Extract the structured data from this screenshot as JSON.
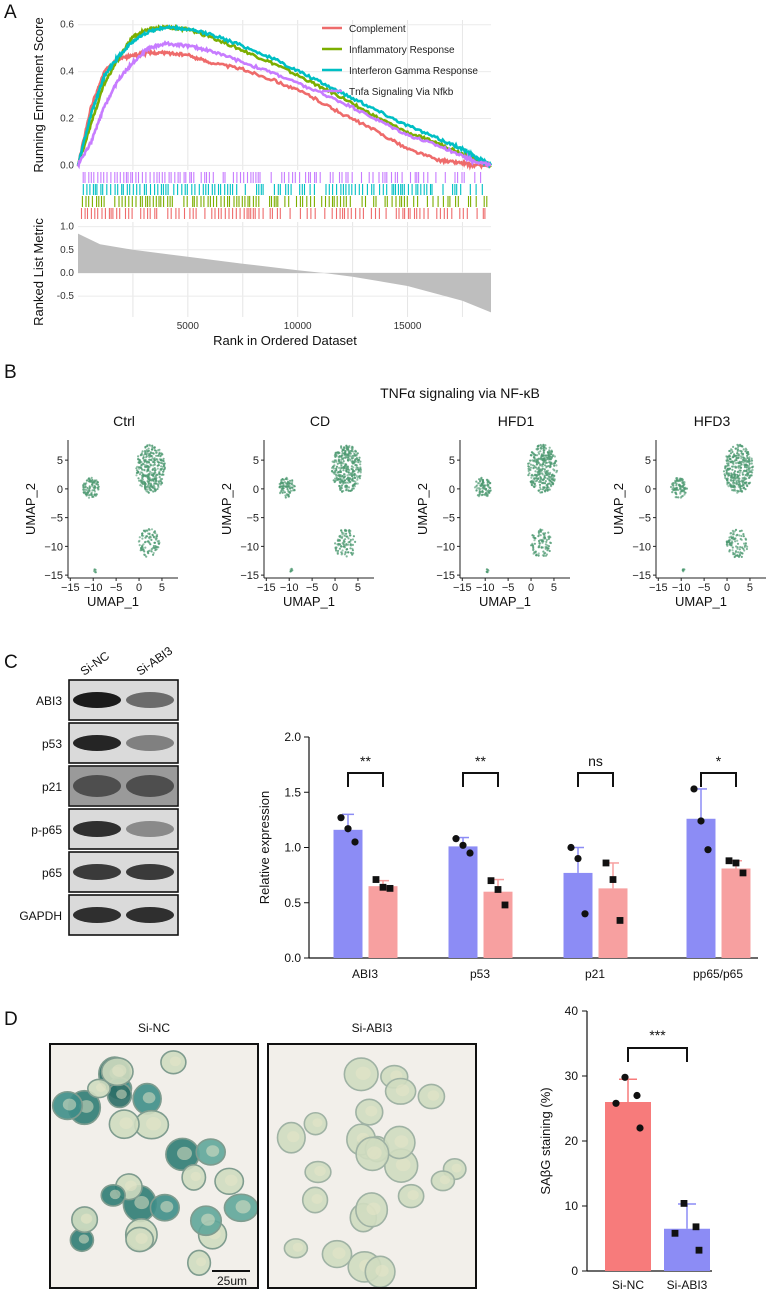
{
  "panel_letters": [
    "A",
    "B",
    "C",
    "D"
  ],
  "panel_a": {
    "ylabel_top": "Running Enrichment Score",
    "ylabel_bottom": "Ranked List Metric",
    "xlabel": "Rank in Ordered Dataset",
    "es_ticks": [
      "0.0",
      "0.2",
      "0.4",
      "0.6"
    ],
    "metric_ticks": [
      "1.0",
      "0.5",
      "0.0",
      "-0.5"
    ],
    "x_ticks": [
      "5000",
      "10000",
      "15000"
    ],
    "legend": [
      {
        "name": "Complement",
        "color": "#EE6B6B"
      },
      {
        "name": "Inflammatory Response",
        "color": "#7CAE00"
      },
      {
        "name": "Interferon Gamma Response",
        "color": "#00BFC4"
      },
      {
        "name": "Tnfa Signaling Via Nfkb",
        "color": "#C77CFF"
      }
    ]
  },
  "panel_b": {
    "title": "TNFα signaling via NF-κB",
    "groups": [
      "Ctrl",
      "CD",
      "HFD1",
      "HFD3"
    ],
    "xlabel": "UMAP_1",
    "ylabel": "UMAP_2",
    "x_ticks": [
      "−15",
      "−10",
      "−5",
      "0",
      "5"
    ],
    "y_ticks": [
      "5",
      "0",
      "−5",
      "−10",
      "−15"
    ],
    "color": "#4E9A72"
  },
  "panel_c": {
    "lanes": [
      "Si-NC",
      "Si-ABI3"
    ],
    "blots": [
      "ABI3",
      "p53",
      "p21",
      "p-p65",
      "p65",
      "GAPDH"
    ]
  },
  "panel_d": {
    "image_labels": [
      "Si-NC",
      "Si-ABI3"
    ],
    "scale_bar": "25um"
  },
  "chart_data": [
    {
      "type": "line",
      "title": "",
      "xlabel": "Rank in Ordered Dataset",
      "ylabel": "Running Enrichment Score",
      "xlim": [
        0,
        18800
      ],
      "ylim": [
        -0.02,
        0.62
      ],
      "series": [
        {
          "name": "Complement",
          "color": "#EE6B6B",
          "x": [
            0,
            600,
            1200,
            1800,
            2500,
            3200,
            4000,
            5000,
            6000,
            7500,
            9000,
            10500,
            12000,
            13500,
            15000,
            16500,
            17500,
            18000,
            18800
          ],
          "values": [
            0.0,
            0.25,
            0.4,
            0.45,
            0.47,
            0.48,
            0.48,
            0.47,
            0.44,
            0.41,
            0.36,
            0.3,
            0.22,
            0.15,
            0.07,
            0.02,
            0.01,
            0.0,
            0.0
          ]
        },
        {
          "name": "Inflammatory Response",
          "color": "#7CAE00",
          "x": [
            0,
            600,
            1200,
            1800,
            2500,
            3200,
            4000,
            5000,
            6000,
            7500,
            9000,
            10500,
            12000,
            13500,
            15000,
            16500,
            17500,
            18000,
            18800
          ],
          "values": [
            0.0,
            0.18,
            0.35,
            0.45,
            0.55,
            0.58,
            0.59,
            0.58,
            0.55,
            0.49,
            0.43,
            0.36,
            0.29,
            0.21,
            0.14,
            0.09,
            0.05,
            0.03,
            0.0
          ]
        },
        {
          "name": "Interferon Gamma Response",
          "color": "#00BFC4",
          "x": [
            0,
            600,
            1200,
            1800,
            2500,
            3200,
            4000,
            5000,
            6000,
            7500,
            9000,
            10500,
            12000,
            13500,
            15000,
            16500,
            17500,
            18000,
            18800
          ],
          "values": [
            0.0,
            0.22,
            0.38,
            0.46,
            0.53,
            0.57,
            0.59,
            0.58,
            0.56,
            0.51,
            0.45,
            0.38,
            0.31,
            0.24,
            0.17,
            0.11,
            0.07,
            0.04,
            0.0
          ]
        },
        {
          "name": "Tnfa Signaling Via Nfkb",
          "color": "#C77CFF",
          "x": [
            0,
            600,
            1200,
            1800,
            2500,
            3200,
            4000,
            5000,
            6000,
            7500,
            9000,
            10500,
            12000,
            13500,
            15000,
            16500,
            17500,
            18000,
            18800
          ],
          "values": [
            0.0,
            0.1,
            0.25,
            0.36,
            0.44,
            0.5,
            0.52,
            0.51,
            0.49,
            0.44,
            0.39,
            0.33,
            0.27,
            0.2,
            0.13,
            0.08,
            0.04,
            0.02,
            0.0
          ]
        }
      ]
    },
    {
      "type": "area",
      "title": "",
      "xlabel": "Rank in Ordered Dataset",
      "ylabel": "Ranked List Metric",
      "xlim": [
        0,
        18800
      ],
      "ylim": [
        -0.95,
        1.1
      ],
      "x": [
        0,
        1000,
        2500,
        5000,
        7500,
        10000,
        11200,
        12500,
        15000,
        17500,
        18800
      ],
      "values": [
        0.85,
        0.62,
        0.5,
        0.35,
        0.2,
        0.06,
        0.0,
        -0.08,
        -0.28,
        -0.6,
        -0.85
      ]
    },
    {
      "type": "bar",
      "title": "",
      "xlabel": "",
      "ylabel": "Relative expression",
      "ylim": [
        0,
        2.0
      ],
      "y_ticks": [
        "0.0",
        "0.5",
        "1.0",
        "1.5",
        "2.0"
      ],
      "categories": [
        "ABI3",
        "p53",
        "p21",
        "pp65/p65"
      ],
      "significance": [
        "**",
        "**",
        "ns",
        "*"
      ],
      "series": [
        {
          "name": "Si-NC",
          "color": "#8C8CF5",
          "values": [
            1.16,
            1.01,
            0.77,
            1.26
          ],
          "error": [
            0.14,
            0.08,
            0.23,
            0.27
          ],
          "points": [
            [
              1.27,
              1.17,
              1.05
            ],
            [
              1.08,
              1.02,
              0.95
            ],
            [
              1.0,
              0.9,
              0.4
            ],
            [
              1.53,
              1.24,
              0.98
            ]
          ]
        },
        {
          "name": "Si-ABI3",
          "color": "#F7A0A0",
          "values": [
            0.65,
            0.6,
            0.63,
            0.81
          ],
          "error": [
            0.05,
            0.11,
            0.23,
            0.07
          ],
          "points": [
            [
              0.71,
              0.64,
              0.63
            ],
            [
              0.7,
              0.62,
              0.48
            ],
            [
              0.86,
              0.71,
              0.34
            ],
            [
              0.88,
              0.86,
              0.77
            ]
          ]
        }
      ]
    },
    {
      "type": "bar",
      "title": "",
      "xlabel": "",
      "ylabel": "SAβG staining (%)",
      "ylim": [
        0,
        40
      ],
      "y_ticks": [
        "0",
        "10",
        "20",
        "30",
        "40"
      ],
      "categories": [
        "Si-NC",
        "Si-ABI3"
      ],
      "significance": [
        "***"
      ],
      "colors": [
        "#F77B7B",
        "#8C8CF5"
      ],
      "values": [
        26.0,
        6.5
      ],
      "error": [
        3.5,
        3.8
      ],
      "points": [
        [
          29.8,
          27.0,
          25.8,
          22.0
        ],
        [
          10.4,
          6.8,
          5.8,
          3.2
        ]
      ]
    }
  ]
}
